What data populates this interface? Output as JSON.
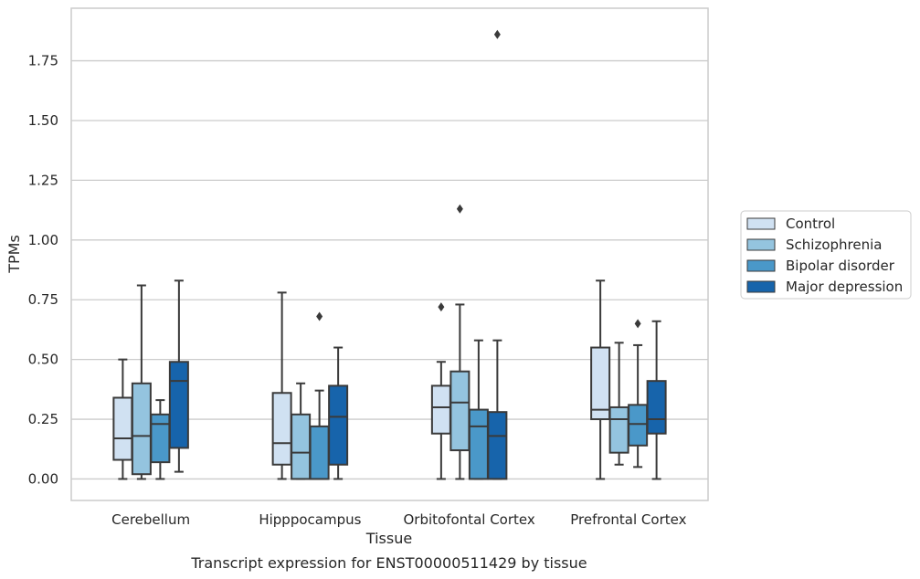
{
  "chart_data": {
    "type": "box",
    "title": "Transcript expression for ENST00000511429 by tissue",
    "xlabel": "Tissue",
    "ylabel": "TPMs",
    "ylim": [
      -0.09,
      1.97
    ],
    "yticks": [
      "0.00",
      "0.25",
      "0.50",
      "0.75",
      "1.00",
      "1.25",
      "1.50",
      "1.75"
    ],
    "grid": "horizontal",
    "legend_position": "right",
    "categories": [
      "Cerebellum",
      "Hipppocampus",
      "Orbitofontal Cortex",
      "Prefrontal Cortex"
    ],
    "series": [
      {
        "name": "Control",
        "color": "#d0e1f2",
        "boxes": [
          {
            "min": 0.0,
            "q1": 0.08,
            "median": 0.17,
            "q3": 0.34,
            "max": 0.5,
            "outliers": []
          },
          {
            "min": 0.0,
            "q1": 0.06,
            "median": 0.15,
            "q3": 0.36,
            "max": 0.78,
            "outliers": []
          },
          {
            "min": 0.0,
            "q1": 0.19,
            "median": 0.3,
            "q3": 0.39,
            "max": 0.49,
            "outliers": [
              0.72
            ]
          },
          {
            "min": 0.0,
            "q1": 0.25,
            "median": 0.29,
            "q3": 0.55,
            "max": 0.83,
            "outliers": []
          }
        ]
      },
      {
        "name": "Schizophrenia",
        "color": "#94c4df",
        "boxes": [
          {
            "min": 0.0,
            "q1": 0.02,
            "median": 0.18,
            "q3": 0.4,
            "max": 0.81,
            "outliers": []
          },
          {
            "min": 0.0,
            "q1": 0.0,
            "median": 0.11,
            "q3": 0.27,
            "max": 0.4,
            "outliers": []
          },
          {
            "min": 0.0,
            "q1": 0.12,
            "median": 0.32,
            "q3": 0.45,
            "max": 0.73,
            "outliers": [
              1.13
            ]
          },
          {
            "min": 0.06,
            "q1": 0.11,
            "median": 0.25,
            "q3": 0.3,
            "max": 0.57,
            "outliers": []
          }
        ]
      },
      {
        "name": "Bipolar disorder",
        "color": "#4a98c9",
        "boxes": [
          {
            "min": 0.0,
            "q1": 0.07,
            "median": 0.23,
            "q3": 0.27,
            "max": 0.33,
            "outliers": []
          },
          {
            "min": 0.0,
            "q1": 0.0,
            "median": 0.0,
            "q3": 0.22,
            "max": 0.37,
            "outliers": [
              0.68
            ]
          },
          {
            "min": 0.0,
            "q1": 0.0,
            "median": 0.22,
            "q3": 0.29,
            "max": 0.58,
            "outliers": []
          },
          {
            "min": 0.05,
            "q1": 0.14,
            "median": 0.23,
            "q3": 0.31,
            "max": 0.56,
            "outliers": [
              0.65
            ]
          }
        ]
      },
      {
        "name": "Major depression",
        "color": "#1764ab",
        "boxes": [
          {
            "min": 0.03,
            "q1": 0.13,
            "median": 0.41,
            "q3": 0.49,
            "max": 0.83,
            "outliers": []
          },
          {
            "min": 0.0,
            "q1": 0.06,
            "median": 0.26,
            "q3": 0.39,
            "max": 0.55,
            "outliers": []
          },
          {
            "min": 0.0,
            "q1": 0.0,
            "median": 0.18,
            "q3": 0.28,
            "max": 0.58,
            "outliers": [
              1.86
            ]
          },
          {
            "min": 0.0,
            "q1": 0.19,
            "median": 0.25,
            "q3": 0.41,
            "max": 0.66,
            "outliers": []
          }
        ]
      }
    ]
  }
}
